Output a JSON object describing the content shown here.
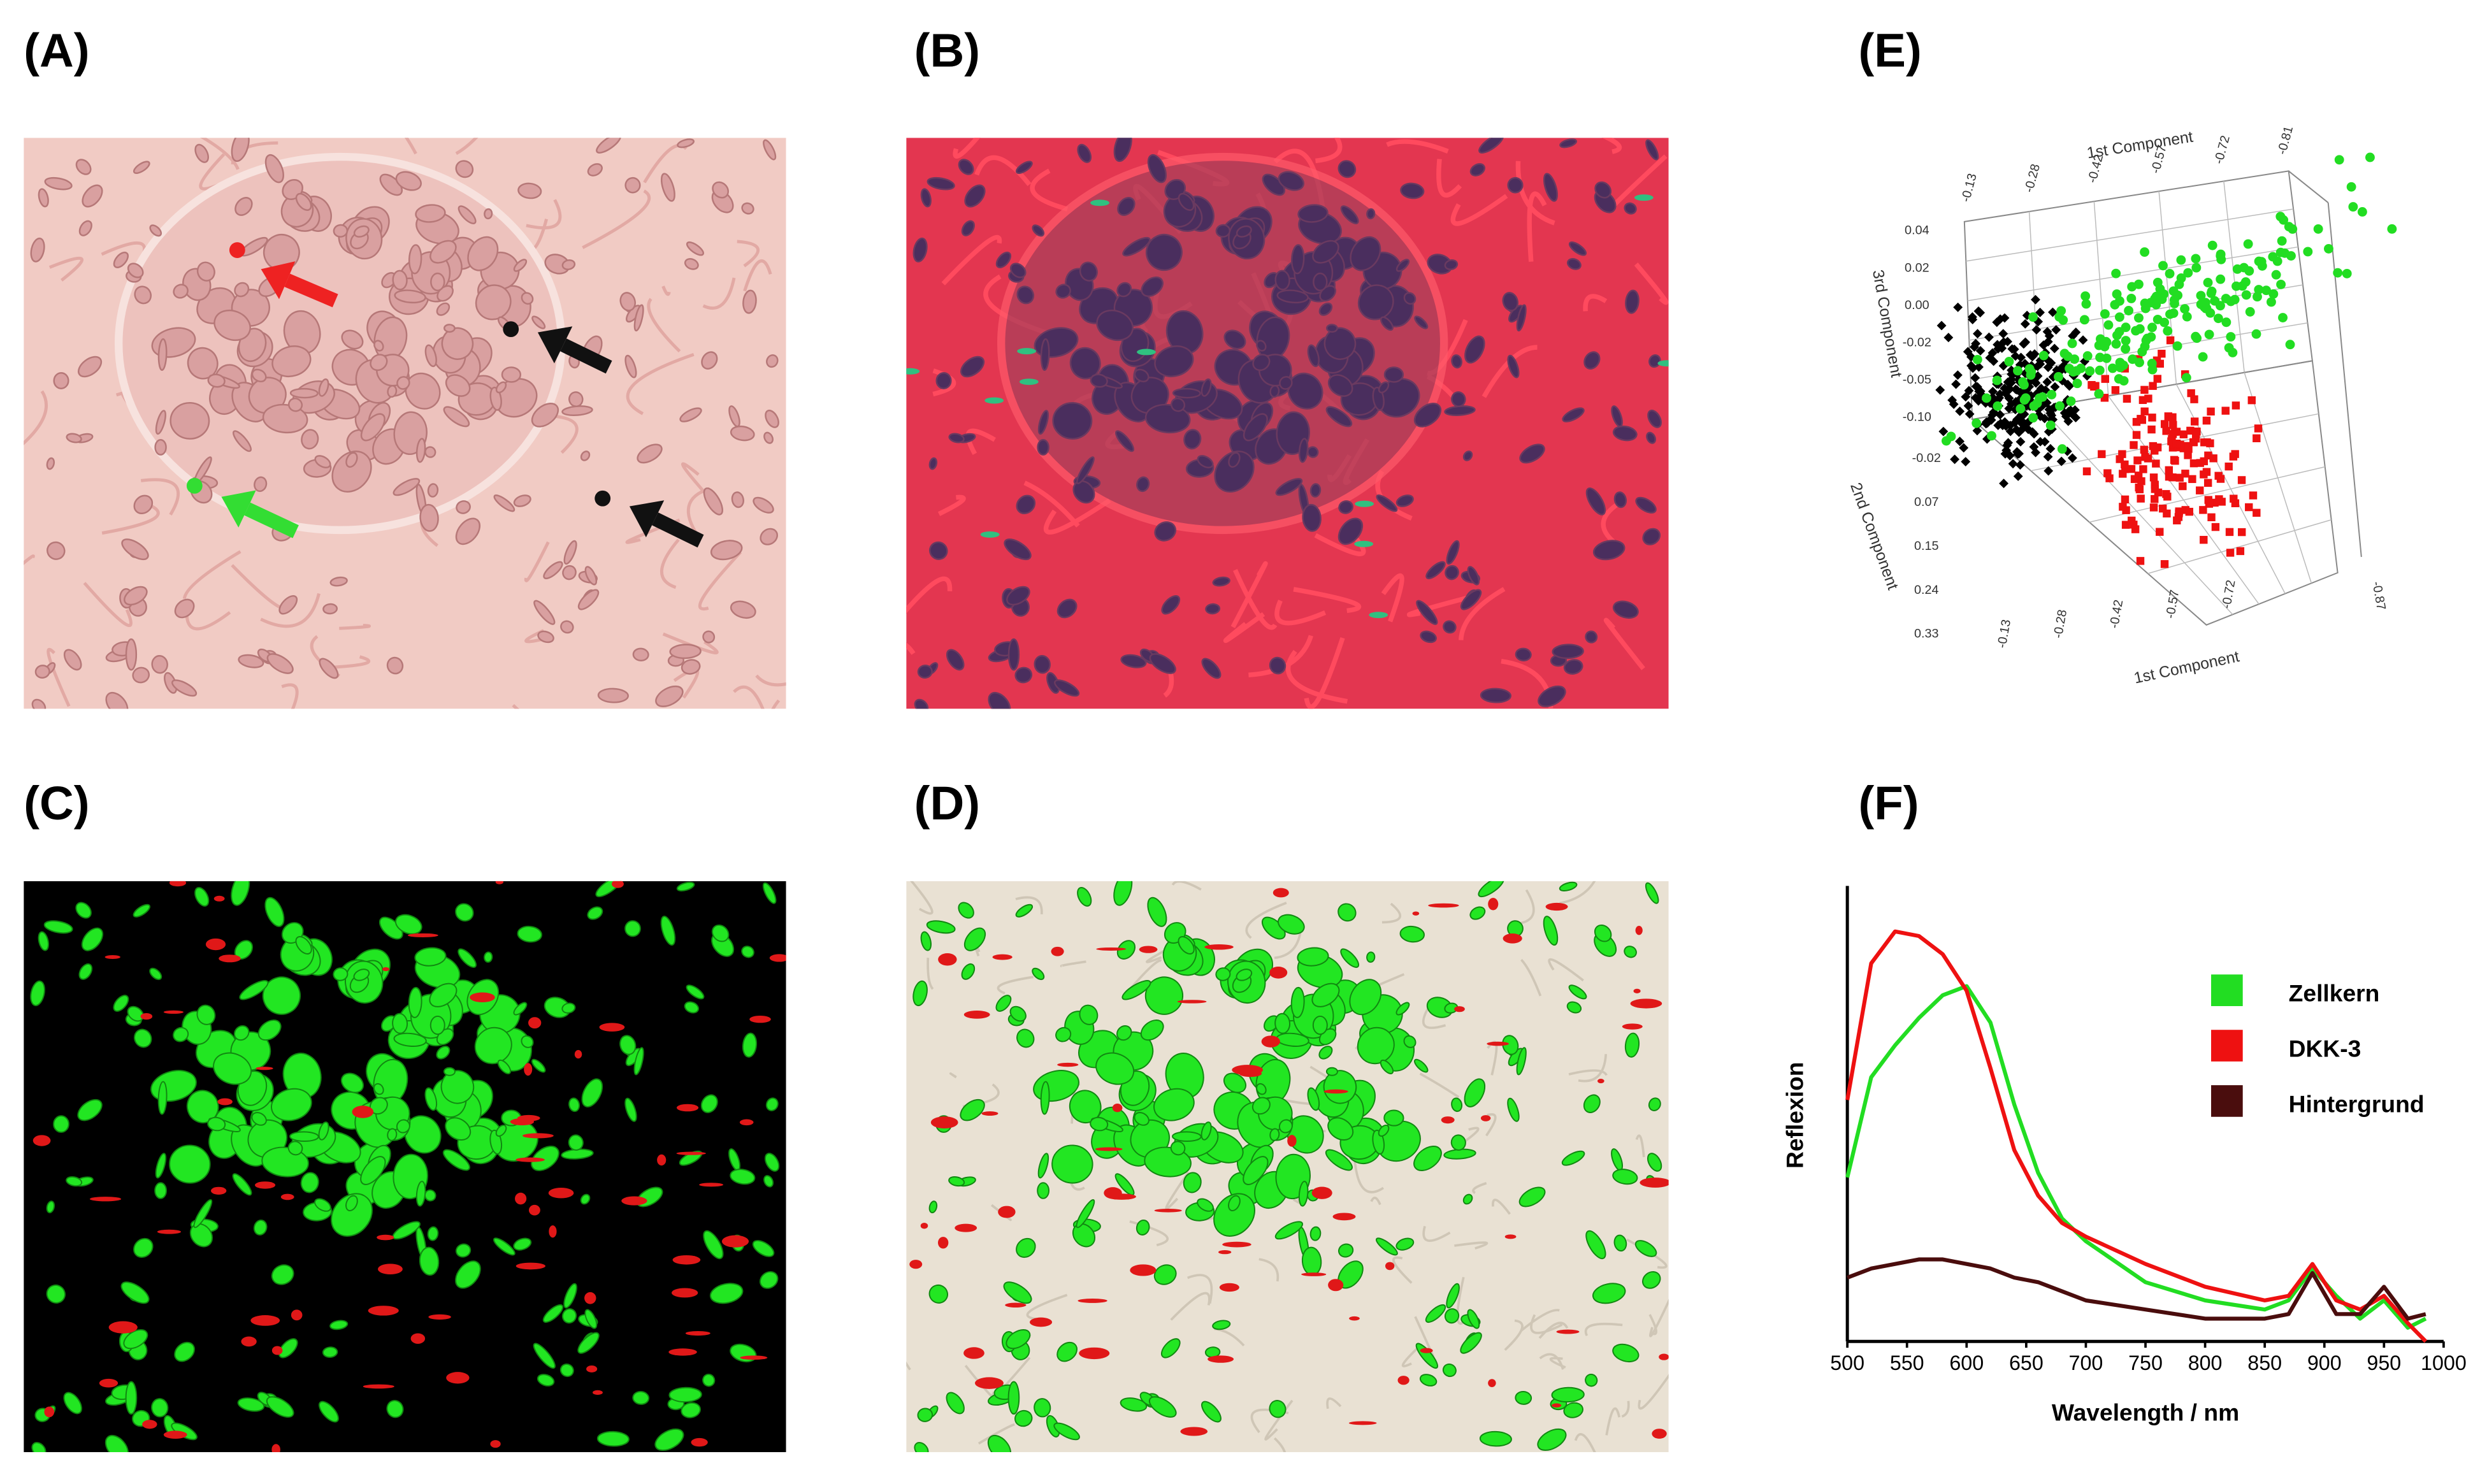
{
  "panel_labels": [
    "(A)",
    "(B)",
    "(C)",
    "(D)",
    "(E)",
    "(F)"
  ],
  "pca_plot": {
    "top_axis_label": "1st Component",
    "top_ticks": [
      "-0.13",
      "-0.28",
      "-0.42",
      "-0.57",
      "-0.72",
      "-0.81"
    ],
    "left_axis_label": "3rd Component",
    "left_ticks": [
      "0.04",
      "0.02",
      "0.00",
      "-0.02",
      "-0.05",
      "-0.10"
    ],
    "depth_axis_label": "2nd Component",
    "depth_ticks": [
      "-0.02",
      "0.07",
      "0.15",
      "0.24",
      "0.33"
    ],
    "bottom_axis_label": "1st Component",
    "bottom_ticks": [
      "-0.13",
      "-0.28",
      "-0.42",
      "-0.57",
      "-0.72"
    ],
    "right_tick": "-0.87"
  },
  "chart_data": {
    "type": "line",
    "xlabel": "Wavelength / nm",
    "ylabel": "Reflexion",
    "x": [
      500,
      520,
      540,
      560,
      580,
      600,
      620,
      640,
      660,
      680,
      700,
      750,
      800,
      850,
      870,
      890,
      910,
      930,
      950,
      970,
      985
    ],
    "series": [
      {
        "name": "Zellkern",
        "color": "#22dd22",
        "values": [
          0.36,
          0.58,
          0.65,
          0.71,
          0.76,
          0.78,
          0.7,
          0.52,
          0.37,
          0.27,
          0.22,
          0.13,
          0.09,
          0.07,
          0.09,
          0.16,
          0.1,
          0.05,
          0.09,
          0.03,
          0.05
        ]
      },
      {
        "name": "DKK-3",
        "color": "#ee1111",
        "values": [
          0.53,
          0.83,
          0.9,
          0.89,
          0.85,
          0.77,
          0.6,
          0.42,
          0.32,
          0.26,
          0.23,
          0.17,
          0.12,
          0.09,
          0.1,
          0.17,
          0.09,
          0.07,
          0.1,
          0.04,
          0
        ]
      },
      {
        "name": "Hintergrund",
        "color": "#4a0d0d",
        "values": [
          0.14,
          0.16,
          0.17,
          0.18,
          0.18,
          0.17,
          0.16,
          0.14,
          0.13,
          0.11,
          0.09,
          0.07,
          0.05,
          0.05,
          0.06,
          0.15,
          0.06,
          0.06,
          0.12,
          0.05,
          0.06
        ]
      }
    ],
    "xlim": [
      500,
      1000
    ],
    "xticks": [
      500,
      550,
      600,
      650,
      700,
      750,
      800,
      850,
      900,
      950,
      1000
    ],
    "ylim": [
      0,
      1
    ],
    "legend": "upper right"
  }
}
